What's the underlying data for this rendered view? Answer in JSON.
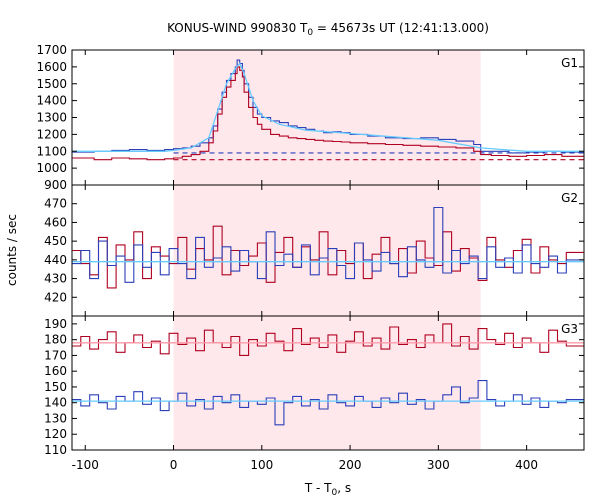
{
  "chart_data": {
    "type": "line",
    "title": "KONUS-WIND 990830 T",
    "title_sub": "0",
    "title_rest": " = 45673s UT (12:41:13.000)",
    "xlabel": "T - T",
    "xlabel_sub": "0",
    "xlabel_rest": ", s",
    "ylabel": "counts / sec",
    "xlim": [
      -115,
      465
    ],
    "x_ticks": [
      -100,
      0,
      100,
      200,
      300,
      400
    ],
    "x_tick_labels": [
      "-100",
      "0",
      "100",
      "200",
      "300",
      "400"
    ],
    "highlight_interval": [
      0,
      348
    ],
    "colors": {
      "red": "#b00020",
      "blue": "#2a3fb8",
      "light_blue": "#66ccff",
      "pink": "#ff9aa8",
      "highlight": "#ffe8ec"
    },
    "panels": [
      {
        "label": "G1",
        "ylim": [
          900,
          1700
        ],
        "y_ticks": [
          900,
          1000,
          1100,
          1200,
          1300,
          1400,
          1500,
          1600,
          1700
        ],
        "y_tick_labels": [
          "900",
          "1000",
          "1100",
          "1200",
          "1300",
          "1400",
          "1500",
          "1600",
          "1700"
        ],
        "background_levels": {
          "blue": 1090,
          "red": 1050
        },
        "series": [
          {
            "color": "blue",
            "style": "step",
            "x": [
              -115,
              -90,
              -70,
              -50,
              -30,
              -10,
              0,
              10,
              20,
              30,
              40,
              45,
              50,
              55,
              60,
              65,
              70,
              72,
              75,
              78,
              80,
              85,
              90,
              95,
              100,
              110,
              120,
              130,
              140,
              150,
              160,
              170,
              180,
              190,
              200,
              220,
              240,
              260,
              280,
              300,
              320,
              340,
              348,
              360,
              380,
              400,
              420,
              440,
              465
            ],
            "y": [
              1095,
              1100,
              1105,
              1110,
              1105,
              1110,
              1115,
              1120,
              1130,
              1150,
              1180,
              1250,
              1350,
              1450,
              1520,
              1560,
              1600,
              1640,
              1620,
              1580,
              1500,
              1420,
              1360,
              1320,
              1300,
              1280,
              1270,
              1250,
              1240,
              1230,
              1220,
              1210,
              1215,
              1210,
              1200,
              1190,
              1180,
              1175,
              1180,
              1170,
              1160,
              1140,
              1100,
              1100,
              1090,
              1095,
              1100,
              1095,
              1100
            ]
          },
          {
            "color": "red",
            "style": "step",
            "x": [
              -115,
              -90,
              -70,
              -50,
              -30,
              -10,
              0,
              10,
              20,
              30,
              40,
              45,
              50,
              55,
              60,
              65,
              70,
              72,
              75,
              78,
              80,
              85,
              90,
              95,
              100,
              110,
              120,
              130,
              140,
              150,
              160,
              170,
              180,
              190,
              200,
              220,
              240,
              260,
              280,
              300,
              320,
              340,
              348,
              360,
              380,
              400,
              420,
              440,
              465
            ],
            "y": [
              1060,
              1050,
              1060,
              1055,
              1050,
              1055,
              1060,
              1070,
              1080,
              1100,
              1150,
              1220,
              1320,
              1420,
              1480,
              1520,
              1560,
              1600,
              1580,
              1540,
              1450,
              1360,
              1300,
              1260,
              1230,
              1200,
              1190,
              1180,
              1175,
              1170,
              1165,
              1160,
              1158,
              1155,
              1150,
              1145,
              1140,
              1135,
              1130,
              1125,
              1120,
              1100,
              1080,
              1075,
              1070,
              1075,
              1080,
              1070,
              1075
            ]
          },
          {
            "color": "light_blue",
            "style": "line",
            "x": [
              -115,
              -10,
              0,
              20,
              40,
              50,
              60,
              70,
              75,
              80,
              90,
              100,
              120,
              150,
              200,
              250,
              300,
              348,
              400,
              465
            ],
            "y": [
              1100,
              1100,
              1105,
              1120,
              1180,
              1340,
              1500,
              1590,
              1620,
              1560,
              1400,
              1310,
              1260,
              1225,
              1205,
              1185,
              1165,
              1120,
              1100,
              1100
            ]
          }
        ]
      },
      {
        "label": "G2",
        "ylim": [
          410,
          480
        ],
        "y_ticks": [
          420,
          430,
          440,
          450,
          460,
          470
        ],
        "y_tick_labels": [
          "420",
          "430",
          "440",
          "450",
          "460",
          "470"
        ],
        "background_levels": {
          "blue": 439
        },
        "series": [
          {
            "color": "red",
            "style": "step",
            "x": [
              -115,
              -105,
              -95,
              -85,
              -75,
              -65,
              -55,
              -45,
              -35,
              -25,
              -15,
              -5,
              5,
              15,
              25,
              35,
              45,
              55,
              65,
              75,
              85,
              95,
              105,
              115,
              125,
              135,
              145,
              155,
              165,
              175,
              185,
              195,
              205,
              215,
              225,
              235,
              245,
              255,
              265,
              275,
              285,
              295,
              305,
              315,
              325,
              335,
              345,
              355,
              365,
              375,
              385,
              395,
              405,
              415,
              425,
              435,
              445,
              465
            ],
            "y": [
              445,
              438,
              432,
              452,
              425,
              448,
              440,
              455,
              430,
              447,
              442,
              438,
              452,
              435,
              446,
              440,
              458,
              432,
              445,
              437,
              442,
              449,
              428,
              444,
              452,
              436,
              447,
              440,
              455,
              432,
              445,
              438,
              449,
              430,
              443,
              452,
              438,
              446,
              433,
              450,
              441,
              437,
              455,
              434,
              446,
              441,
              429,
              452,
              440,
              436,
              445,
              451,
              433,
              447,
              440,
              438,
              444,
              444
            ]
          },
          {
            "color": "blue",
            "style": "step",
            "x": [
              -115,
              -105,
              -95,
              -85,
              -75,
              -65,
              -55,
              -45,
              -35,
              -25,
              -15,
              -5,
              5,
              15,
              25,
              35,
              45,
              55,
              65,
              75,
              85,
              95,
              105,
              115,
              125,
              135,
              145,
              155,
              165,
              175,
              185,
              195,
              205,
              215,
              225,
              235,
              245,
              255,
              265,
              275,
              285,
              295,
              305,
              315,
              325,
              335,
              345,
              355,
              365,
              375,
              385,
              395,
              405,
              415,
              425,
              435,
              445,
              465
            ],
            "y": [
              438,
              445,
              430,
              450,
              437,
              442,
              428,
              448,
              436,
              444,
              432,
              446,
              438,
              430,
              452,
              436,
              441,
              447,
              434,
              445,
              439,
              430,
              455,
              437,
              443,
              436,
              448,
              432,
              441,
              446,
              437,
              430,
              449,
              440,
              434,
              444,
              438,
              431,
              447,
              440,
              436,
              468,
              433,
              445,
              438,
              442,
              430,
              447,
              436,
              441,
              433,
              448,
              438,
              436,
              442,
              433,
              440,
              440
            ]
          },
          {
            "color": "light_blue",
            "style": "line",
            "x": [
              -115,
              465
            ],
            "y": [
              439,
              439
            ]
          }
        ]
      },
      {
        "label": "G3",
        "ylim": [
          110,
          195
        ],
        "y_ticks": [
          110,
          120,
          130,
          140,
          150,
          160,
          170,
          180,
          190
        ],
        "y_tick_labels": [
          "110",
          "120",
          "130",
          "140",
          "150",
          "160",
          "170",
          "180",
          "190"
        ],
        "background_levels": {
          "red": 178,
          "blue": 141
        },
        "series": [
          {
            "color": "red",
            "style": "step",
            "x": [
              -115,
              -105,
              -95,
              -85,
              -75,
              -65,
              -55,
              -45,
              -35,
              -25,
              -15,
              -5,
              5,
              15,
              25,
              35,
              45,
              55,
              65,
              75,
              85,
              95,
              105,
              115,
              125,
              135,
              145,
              155,
              165,
              175,
              185,
              195,
              205,
              215,
              225,
              235,
              245,
              255,
              265,
              275,
              285,
              295,
              305,
              315,
              325,
              335,
              345,
              355,
              365,
              375,
              385,
              395,
              405,
              415,
              425,
              435,
              445,
              465
            ],
            "y": [
              176,
              182,
              174,
              180,
              185,
              172,
              178,
              183,
              175,
              179,
              171,
              184,
              177,
              181,
              173,
              186,
              178,
              175,
              182,
              170,
              180,
              176,
              184,
              179,
              173,
              187,
              177,
              181,
              175,
              183,
              172,
              179,
              185,
              176,
              181,
              174,
              188,
              177,
              180,
              175,
              183,
              178,
              190,
              176,
              182,
              174,
              187,
              180,
              177,
              184,
              175,
              181,
              178,
              172,
              186,
              179,
              176,
              176
            ]
          },
          {
            "color": "blue",
            "style": "step",
            "x": [
              -115,
              -105,
              -95,
              -85,
              -75,
              -65,
              -55,
              -45,
              -35,
              -25,
              -15,
              -5,
              5,
              15,
              25,
              35,
              45,
              55,
              65,
              75,
              85,
              95,
              105,
              115,
              125,
              135,
              145,
              155,
              165,
              175,
              185,
              195,
              205,
              215,
              225,
              235,
              245,
              255,
              265,
              275,
              285,
              295,
              305,
              315,
              325,
              335,
              345,
              355,
              365,
              375,
              385,
              395,
              405,
              415,
              425,
              435,
              445,
              465
            ],
            "y": [
              142,
              138,
              145,
              140,
              136,
              144,
              141,
              147,
              139,
              143,
              135,
              141,
              146,
              138,
              142,
              136,
              144,
              140,
              145,
              137,
              141,
              139,
              143,
              126,
              140,
              144,
              138,
              142,
              136,
              145,
              140,
              138,
              144,
              141,
              137,
              143,
              140,
              146,
              139,
              142,
              136,
              141,
              145,
              150,
              140,
              143,
              154,
              142,
              138,
              141,
              145,
              139,
              143,
              137,
              141,
              140,
              142,
              142
            ]
          },
          {
            "color": "light_blue",
            "style": "line",
            "x": [
              -115,
              465
            ],
            "y": [
              141,
              141
            ]
          },
          {
            "color": "pink",
            "style": "line",
            "x": [
              -115,
              465
            ],
            "y": [
              178,
              178
            ]
          }
        ]
      }
    ]
  }
}
